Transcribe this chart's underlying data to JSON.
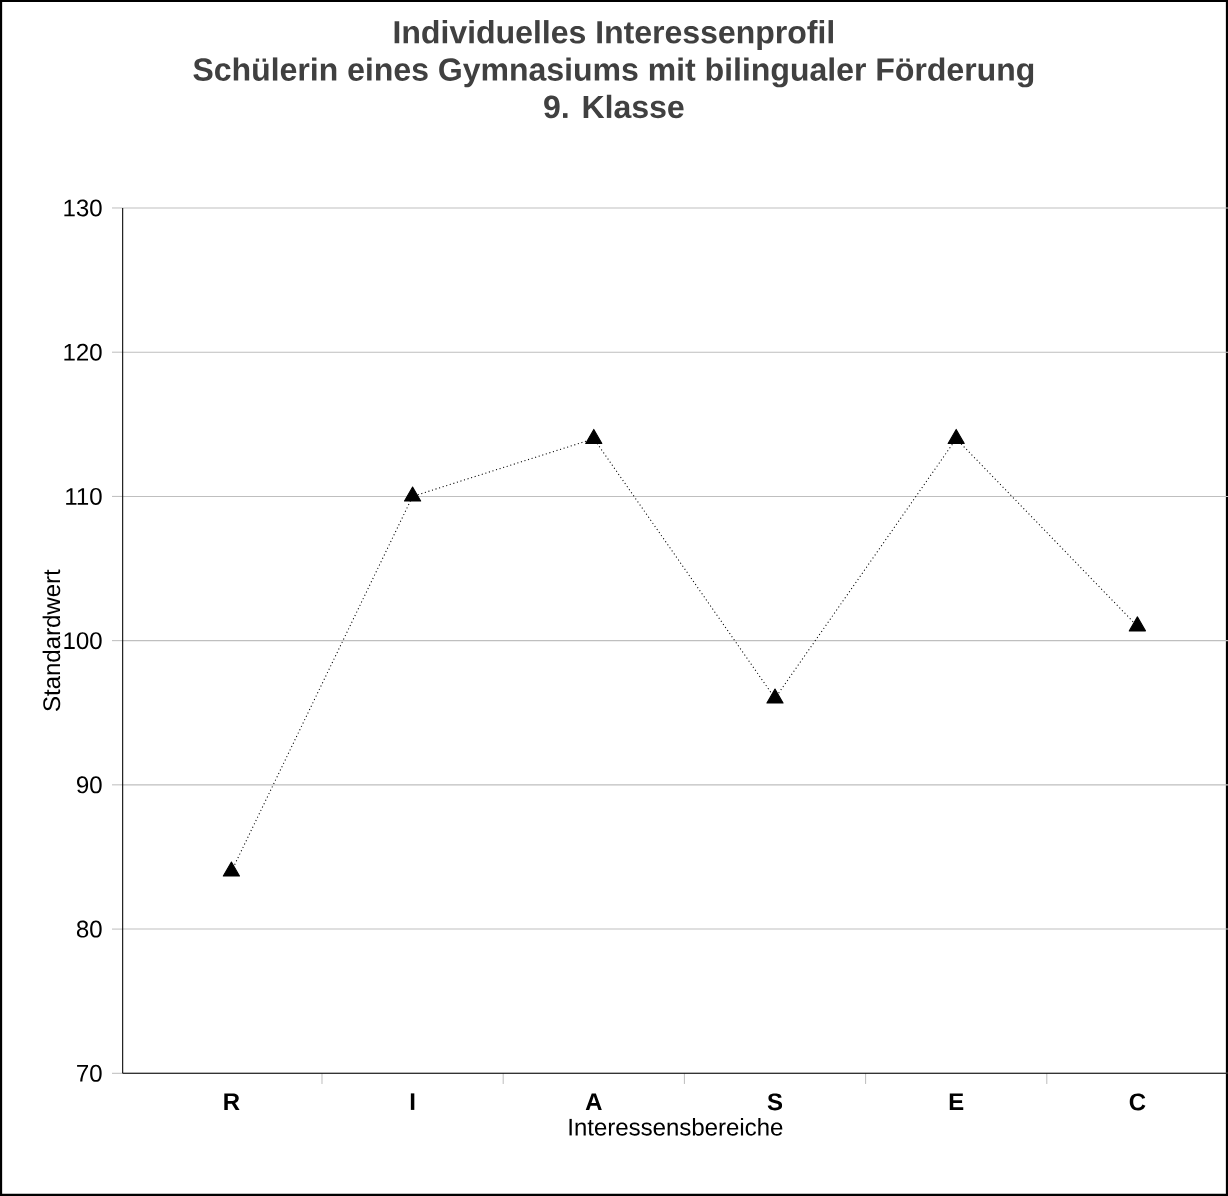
{
  "chart_data": {
    "type": "line",
    "title": "Individuelles Interessenprofil",
    "subtitle": "Schülerin eines Gymnasiums mit bilingualer Förderung",
    "annotations": [
      "9. Klasse"
    ],
    "xlabel": "Interessensbereiche",
    "ylabel": "Standardwert",
    "categories": [
      "R",
      "I",
      "A",
      "S",
      "E",
      "C"
    ],
    "series": [
      {
        "color": "#000000",
        "values": [
          84,
          110,
          114,
          96,
          114,
          101
        ]
      }
    ],
    "ylim": [
      70,
      130
    ],
    "yticks": [
      70,
      80,
      90,
      100,
      110,
      120,
      130
    ],
    "grid": "y",
    "marker": "triangle",
    "line_style": "dotted"
  }
}
